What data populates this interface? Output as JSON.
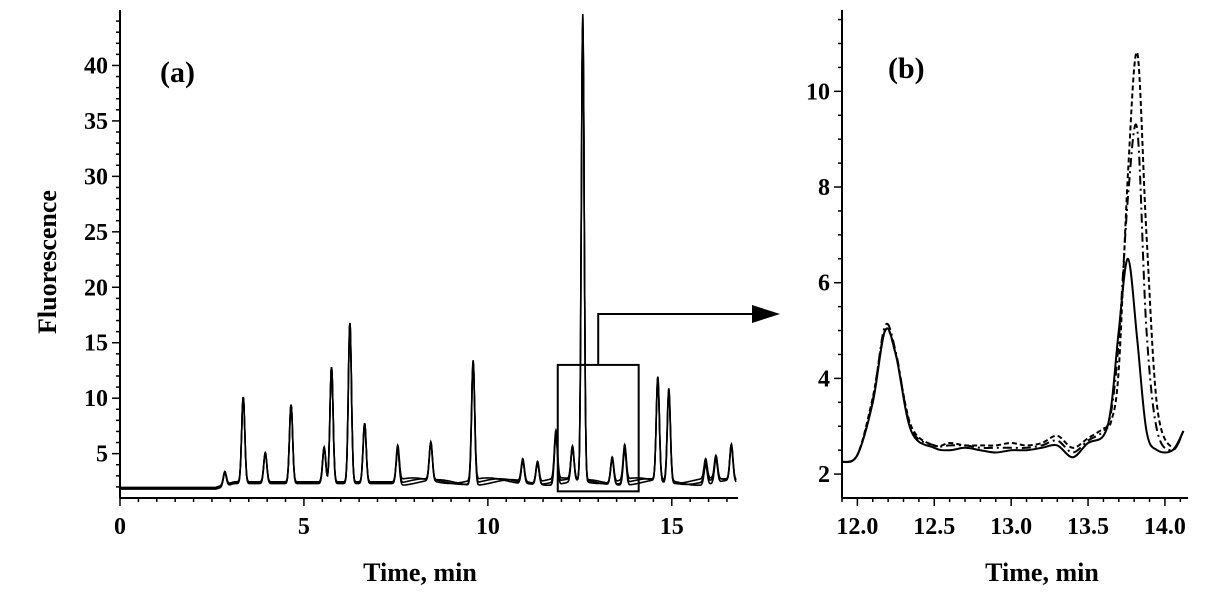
{
  "figure": {
    "panel_a_label": "(a)",
    "panel_b_label": "(b)"
  },
  "chart_data": [
    {
      "type": "line",
      "panel": "(a)",
      "title": "",
      "xlabel": "Time, min",
      "ylabel": "Fluorescence",
      "xlim": [
        0,
        16.8
      ],
      "ylim": [
        1,
        45
      ],
      "xticks": [
        0,
        5,
        10,
        15
      ],
      "yticks": [
        5,
        10,
        15,
        20,
        25,
        30,
        35,
        40
      ],
      "grid": false,
      "legend": "none",
      "baseline": 1.8,
      "peaks": [
        {
          "x": 2.85,
          "y": 3.0
        },
        {
          "x": 3.35,
          "y": 9.6
        },
        {
          "x": 3.95,
          "y": 4.5
        },
        {
          "x": 4.65,
          "y": 8.9
        },
        {
          "x": 5.55,
          "y": 5.0
        },
        {
          "x": 5.75,
          "y": 12.3
        },
        {
          "x": 6.25,
          "y": 16.3
        },
        {
          "x": 6.65,
          "y": 7.2
        },
        {
          "x": 7.55,
          "y": 5.0
        },
        {
          "x": 8.45,
          "y": 5.2
        },
        {
          "x": 9.6,
          "y": 12.8
        },
        {
          "x": 10.95,
          "y": 3.8
        },
        {
          "x": 11.35,
          "y": 3.7
        },
        {
          "x": 11.85,
          "y": 6.2
        },
        {
          "x": 12.3,
          "y": 4.8
        },
        {
          "x": 12.58,
          "y": 43.8
        },
        {
          "x": 13.38,
          "y": 4.1
        },
        {
          "x": 13.72,
          "y": 5.0
        },
        {
          "x": 14.62,
          "y": 11.1
        },
        {
          "x": 14.92,
          "y": 10.1
        },
        {
          "x": 15.92,
          "y": 3.6
        },
        {
          "x": 16.2,
          "y": 3.9
        },
        {
          "x": 16.62,
          "y": 5.0
        }
      ],
      "series_count": 3,
      "zoom_box": {
        "x_range": [
          11.9,
          14.1
        ],
        "y_range": [
          1.6,
          13.0
        ]
      }
    },
    {
      "type": "line",
      "panel": "(b)",
      "title": "",
      "xlabel": "Time, min",
      "ylabel": "",
      "xlim": [
        11.9,
        14.15
      ],
      "ylim": [
        1.5,
        11.7
      ],
      "xticks": [
        12.0,
        12.5,
        13.0,
        13.5,
        14.0
      ],
      "yticks": [
        2,
        4,
        6,
        8,
        10
      ],
      "grid": false,
      "legend": "none",
      "series": [
        {
          "style": "solid",
          "x": [
            11.9,
            12.0,
            12.1,
            12.18,
            12.25,
            12.35,
            12.5,
            12.6,
            12.7,
            12.8,
            12.9,
            13.0,
            13.1,
            13.2,
            13.3,
            13.4,
            13.5,
            13.6,
            13.65,
            13.7,
            13.76,
            13.82,
            13.88,
            13.95,
            14.05,
            14.12
          ],
          "y": [
            2.25,
            2.4,
            3.5,
            5.0,
            4.5,
            2.9,
            2.55,
            2.5,
            2.55,
            2.5,
            2.45,
            2.5,
            2.5,
            2.55,
            2.6,
            2.35,
            2.65,
            2.8,
            3.4,
            5.0,
            6.5,
            4.8,
            2.9,
            2.5,
            2.5,
            2.9
          ]
        },
        {
          "style": "dash-dot",
          "x": [
            11.9,
            12.0,
            12.1,
            12.18,
            12.25,
            12.35,
            12.5,
            12.6,
            12.7,
            12.8,
            12.9,
            13.0,
            13.1,
            13.2,
            13.3,
            13.4,
            13.5,
            13.6,
            13.65,
            13.7,
            13.76,
            13.82,
            13.88,
            13.95,
            14.05,
            14.12
          ],
          "y": [
            2.25,
            2.4,
            3.55,
            5.1,
            4.55,
            2.95,
            2.6,
            2.6,
            2.6,
            2.55,
            2.55,
            2.55,
            2.55,
            2.6,
            2.7,
            2.45,
            2.7,
            2.9,
            3.3,
            4.8,
            7.8,
            9.2,
            5.0,
            2.9,
            2.5,
            2.9
          ]
        },
        {
          "style": "dashed",
          "x": [
            11.9,
            12.0,
            12.1,
            12.18,
            12.25,
            12.35,
            12.5,
            12.6,
            12.7,
            12.8,
            12.9,
            13.0,
            13.1,
            13.2,
            13.3,
            13.4,
            13.5,
            13.6,
            13.65,
            13.7,
            13.76,
            13.82,
            13.88,
            13.95,
            14.05,
            14.12
          ],
          "y": [
            2.25,
            2.4,
            3.6,
            5.0,
            4.5,
            3.0,
            2.6,
            2.65,
            2.6,
            2.6,
            2.6,
            2.65,
            2.6,
            2.65,
            2.8,
            2.55,
            2.75,
            2.95,
            3.1,
            4.2,
            8.3,
            10.8,
            7.0,
            3.4,
            2.55,
            2.9
          ]
        }
      ]
    }
  ]
}
